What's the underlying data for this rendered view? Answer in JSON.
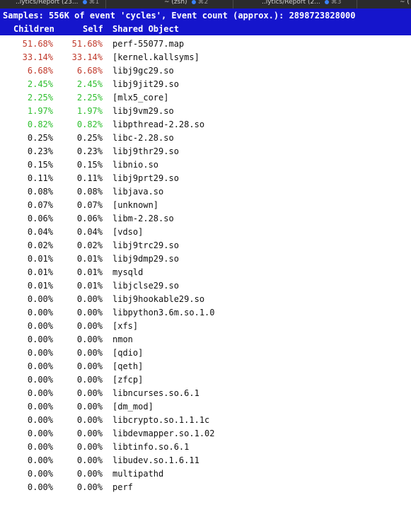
{
  "tabs": [
    {
      "label": "..lytics/Report (23...",
      "shortcut": "⌘1"
    },
    {
      "label": "~ (zsh)",
      "shortcut": "⌘2"
    },
    {
      "label": "..lytics/Report (2...",
      "shortcut": "⌘3"
    },
    {
      "label": "~ (",
      "shortcut": ""
    }
  ],
  "header": {
    "samples_line": "Samples: 556K of event 'cycles', Event count (approx.): 2898723828000",
    "col_children": "Children",
    "col_self": "Self",
    "col_object": "Shared Object"
  },
  "colors": {
    "header_bg": "#1515cc",
    "red": "#c0392b",
    "green": "#2fbf2f",
    "normal": "#111111",
    "tab_dot": "#3b82f6"
  },
  "rows": [
    {
      "children": "51.68%",
      "self": "51.68%",
      "object": "perf-55077.map",
      "color": "red"
    },
    {
      "children": "33.14%",
      "self": "33.14%",
      "object": "[kernel.kallsyms]",
      "color": "red"
    },
    {
      "children": "6.68%",
      "self": "6.68%",
      "object": "libj9gc29.so",
      "color": "red"
    },
    {
      "children": "2.45%",
      "self": "2.45%",
      "object": "libj9jit29.so",
      "color": "green"
    },
    {
      "children": "2.25%",
      "self": "2.25%",
      "object": "[mlx5_core]",
      "color": "green"
    },
    {
      "children": "1.97%",
      "self": "1.97%",
      "object": "libj9vm29.so",
      "color": "green"
    },
    {
      "children": "0.82%",
      "self": "0.82%",
      "object": "libpthread-2.28.so",
      "color": "green"
    },
    {
      "children": "0.25%",
      "self": "0.25%",
      "object": "libc-2.28.so",
      "color": "normal"
    },
    {
      "children": "0.23%",
      "self": "0.23%",
      "object": "libj9thr29.so",
      "color": "normal"
    },
    {
      "children": "0.15%",
      "self": "0.15%",
      "object": "libnio.so",
      "color": "normal"
    },
    {
      "children": "0.11%",
      "self": "0.11%",
      "object": "libj9prt29.so",
      "color": "normal"
    },
    {
      "children": "0.08%",
      "self": "0.08%",
      "object": "libjava.so",
      "color": "normal"
    },
    {
      "children": "0.07%",
      "self": "0.07%",
      "object": "[unknown]",
      "color": "normal"
    },
    {
      "children": "0.06%",
      "self": "0.06%",
      "object": "libm-2.28.so",
      "color": "normal"
    },
    {
      "children": "0.04%",
      "self": "0.04%",
      "object": "[vdso]",
      "color": "normal"
    },
    {
      "children": "0.02%",
      "self": "0.02%",
      "object": "libj9trc29.so",
      "color": "normal"
    },
    {
      "children": "0.01%",
      "self": "0.01%",
      "object": "libj9dmp29.so",
      "color": "normal"
    },
    {
      "children": "0.01%",
      "self": "0.01%",
      "object": "mysqld",
      "color": "normal"
    },
    {
      "children": "0.01%",
      "self": "0.01%",
      "object": "libjclse29.so",
      "color": "normal"
    },
    {
      "children": "0.00%",
      "self": "0.00%",
      "object": "libj9hookable29.so",
      "color": "normal"
    },
    {
      "children": "0.00%",
      "self": "0.00%",
      "object": "libpython3.6m.so.1.0",
      "color": "normal"
    },
    {
      "children": "0.00%",
      "self": "0.00%",
      "object": "[xfs]",
      "color": "normal"
    },
    {
      "children": "0.00%",
      "self": "0.00%",
      "object": "nmon",
      "color": "normal"
    },
    {
      "children": "0.00%",
      "self": "0.00%",
      "object": "[qdio]",
      "color": "normal"
    },
    {
      "children": "0.00%",
      "self": "0.00%",
      "object": "[qeth]",
      "color": "normal"
    },
    {
      "children": "0.00%",
      "self": "0.00%",
      "object": "[zfcp]",
      "color": "normal"
    },
    {
      "children": "0.00%",
      "self": "0.00%",
      "object": "libncurses.so.6.1",
      "color": "normal"
    },
    {
      "children": "0.00%",
      "self": "0.00%",
      "object": "[dm_mod]",
      "color": "normal"
    },
    {
      "children": "0.00%",
      "self": "0.00%",
      "object": "libcrypto.so.1.1.1c",
      "color": "normal"
    },
    {
      "children": "0.00%",
      "self": "0.00%",
      "object": "libdevmapper.so.1.02",
      "color": "normal"
    },
    {
      "children": "0.00%",
      "self": "0.00%",
      "object": "libtinfo.so.6.1",
      "color": "normal"
    },
    {
      "children": "0.00%",
      "self": "0.00%",
      "object": "libudev.so.1.6.11",
      "color": "normal"
    },
    {
      "children": "0.00%",
      "self": "0.00%",
      "object": "multipathd",
      "color": "normal"
    },
    {
      "children": "0.00%",
      "self": "0.00%",
      "object": "perf",
      "color": "normal"
    }
  ]
}
